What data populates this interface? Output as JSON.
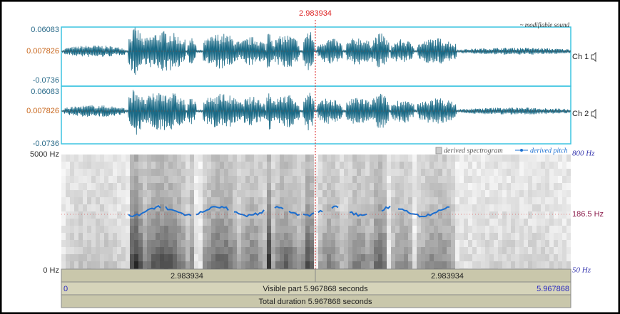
{
  "cursor_time": "2.983934",
  "sound_label": "~ modifiable sound",
  "channels": [
    {
      "name": "Ch 1",
      "max": "0.06083",
      "mid": "0.007826",
      "min": "-0.0736"
    },
    {
      "name": "Ch 2",
      "max": "0.06083",
      "mid": "0.007826",
      "min": "-0.0736"
    }
  ],
  "spectrogram": {
    "top_freq": "5000 Hz",
    "bottom_freq": "0 Hz",
    "legend_spectrogram": "derived spectrogram",
    "legend_pitch": "derived pitch",
    "pitch_top": "800 Hz",
    "pitch_cursor": "186.5 Hz",
    "pitch_bottom": "50 Hz"
  },
  "time_bars": {
    "left_half": "2.983934",
    "right_half": "2.983934",
    "start": "0",
    "visible_part": "Visible part 5.967868 seconds",
    "end": "5.967868",
    "total_duration": "Total duration 5.967868 seconds"
  }
}
